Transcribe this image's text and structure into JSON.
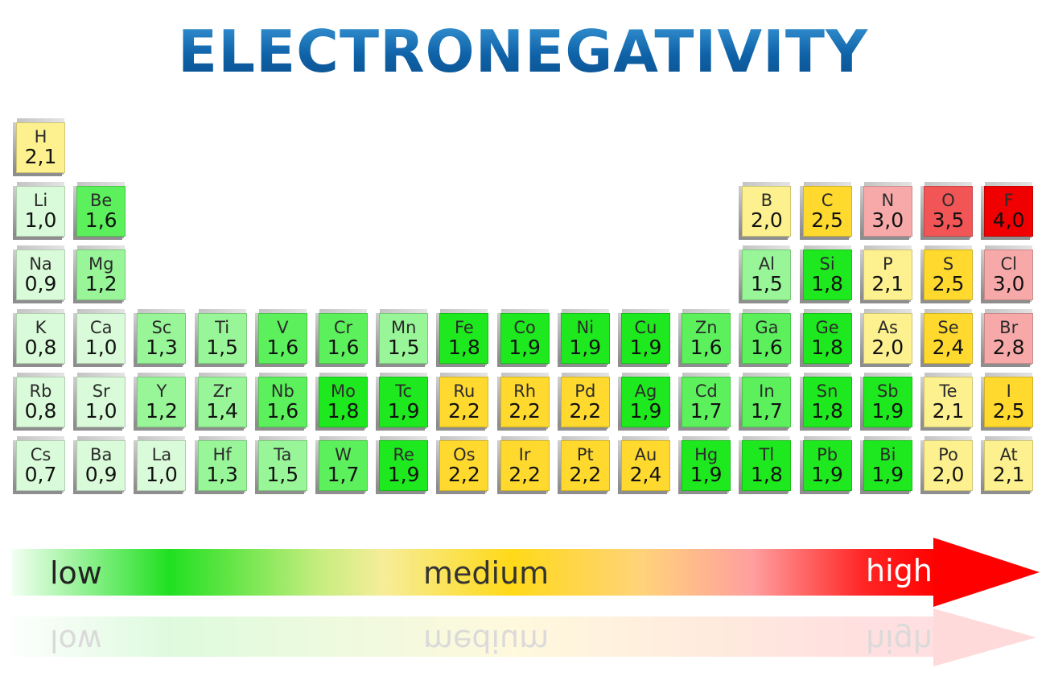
{
  "title": "ELECTRONEGATIVITY",
  "colors": {
    "title": "#1565b0",
    "scale_low": "#20e020",
    "scale_medium": "#ffd918",
    "scale_high": "#ff0000"
  },
  "scale": {
    "low": "low",
    "medium": "medium",
    "high": "high"
  },
  "legend_levels": {
    "very-low": "#d9fbd9",
    "low": "#98f598",
    "medium-low": "#5cf05c",
    "medium": "#1ee81e",
    "pale-yellow": "#fcf08f",
    "yellow": "#ffd92e",
    "pink": "#f7a9a9",
    "red-light": "#f25555",
    "red": "#f00000"
  },
  "elements": [
    {
      "symbol": "H",
      "value": "2,1",
      "row": 1,
      "col": 1,
      "level": "pale-yellow"
    },
    {
      "symbol": "Li",
      "value": "1,0",
      "row": 2,
      "col": 1,
      "level": "very-low"
    },
    {
      "symbol": "Be",
      "value": "1,6",
      "row": 2,
      "col": 2,
      "level": "medium-low"
    },
    {
      "symbol": "B",
      "value": "2,0",
      "row": 2,
      "col": 13,
      "level": "pale-yellow"
    },
    {
      "symbol": "C",
      "value": "2,5",
      "row": 2,
      "col": 14,
      "level": "yellow"
    },
    {
      "symbol": "N",
      "value": "3,0",
      "row": 2,
      "col": 15,
      "level": "pink"
    },
    {
      "symbol": "O",
      "value": "3,5",
      "row": 2,
      "col": 16,
      "level": "red-light"
    },
    {
      "symbol": "F",
      "value": "4,0",
      "row": 2,
      "col": 17,
      "level": "red"
    },
    {
      "symbol": "Na",
      "value": "0,9",
      "row": 3,
      "col": 1,
      "level": "very-low"
    },
    {
      "symbol": "Mg",
      "value": "1,2",
      "row": 3,
      "col": 2,
      "level": "low"
    },
    {
      "symbol": "Al",
      "value": "1,5",
      "row": 3,
      "col": 13,
      "level": "low"
    },
    {
      "symbol": "Si",
      "value": "1,8",
      "row": 3,
      "col": 14,
      "level": "medium"
    },
    {
      "symbol": "P",
      "value": "2,1",
      "row": 3,
      "col": 15,
      "level": "pale-yellow"
    },
    {
      "symbol": "S",
      "value": "2,5",
      "row": 3,
      "col": 16,
      "level": "yellow"
    },
    {
      "symbol": "Cl",
      "value": "3,0",
      "row": 3,
      "col": 17,
      "level": "pink"
    },
    {
      "symbol": "K",
      "value": "0,8",
      "row": 4,
      "col": 1,
      "level": "very-low"
    },
    {
      "symbol": "Ca",
      "value": "1,0",
      "row": 4,
      "col": 2,
      "level": "very-low"
    },
    {
      "symbol": "Sc",
      "value": "1,3",
      "row": 4,
      "col": 3,
      "level": "low"
    },
    {
      "symbol": "Ti",
      "value": "1,5",
      "row": 4,
      "col": 4,
      "level": "low"
    },
    {
      "symbol": "V",
      "value": "1,6",
      "row": 4,
      "col": 5,
      "level": "medium-low"
    },
    {
      "symbol": "Cr",
      "value": "1,6",
      "row": 4,
      "col": 6,
      "level": "medium-low"
    },
    {
      "symbol": "Mn",
      "value": "1,5",
      "row": 4,
      "col": 7,
      "level": "low"
    },
    {
      "symbol": "Fe",
      "value": "1,8",
      "row": 4,
      "col": 8,
      "level": "medium"
    },
    {
      "symbol": "Co",
      "value": "1,9",
      "row": 4,
      "col": 9,
      "level": "medium"
    },
    {
      "symbol": "Ni",
      "value": "1,9",
      "row": 4,
      "col": 10,
      "level": "medium"
    },
    {
      "symbol": "Cu",
      "value": "1,9",
      "row": 4,
      "col": 11,
      "level": "medium"
    },
    {
      "symbol": "Zn",
      "value": "1,6",
      "row": 4,
      "col": 12,
      "level": "medium-low"
    },
    {
      "symbol": "Ga",
      "value": "1,6",
      "row": 4,
      "col": 13,
      "level": "medium-low"
    },
    {
      "symbol": "Ge",
      "value": "1,8",
      "row": 4,
      "col": 14,
      "level": "medium"
    },
    {
      "symbol": "As",
      "value": "2,0",
      "row": 4,
      "col": 15,
      "level": "pale-yellow"
    },
    {
      "symbol": "Se",
      "value": "2,4",
      "row": 4,
      "col": 16,
      "level": "yellow"
    },
    {
      "symbol": "Br",
      "value": "2,8",
      "row": 4,
      "col": 17,
      "level": "pink"
    },
    {
      "symbol": "Rb",
      "value": "0,8",
      "row": 5,
      "col": 1,
      "level": "very-low"
    },
    {
      "symbol": "Sr",
      "value": "1,0",
      "row": 5,
      "col": 2,
      "level": "very-low"
    },
    {
      "symbol": "Y",
      "value": "1,2",
      "row": 5,
      "col": 3,
      "level": "low"
    },
    {
      "symbol": "Zr",
      "value": "1,4",
      "row": 5,
      "col": 4,
      "level": "low"
    },
    {
      "symbol": "Nb",
      "value": "1,6",
      "row": 5,
      "col": 5,
      "level": "medium-low"
    },
    {
      "symbol": "Mo",
      "value": "1,8",
      "row": 5,
      "col": 6,
      "level": "medium"
    },
    {
      "symbol": "Tc",
      "value": "1,9",
      "row": 5,
      "col": 7,
      "level": "medium"
    },
    {
      "symbol": "Ru",
      "value": "2,2",
      "row": 5,
      "col": 8,
      "level": "yellow"
    },
    {
      "symbol": "Rh",
      "value": "2,2",
      "row": 5,
      "col": 9,
      "level": "yellow"
    },
    {
      "symbol": "Pd",
      "value": "2,2",
      "row": 5,
      "col": 10,
      "level": "yellow"
    },
    {
      "symbol": "Ag",
      "value": "1,9",
      "row": 5,
      "col": 11,
      "level": "medium"
    },
    {
      "symbol": "Cd",
      "value": "1,7",
      "row": 5,
      "col": 12,
      "level": "medium-low"
    },
    {
      "symbol": "In",
      "value": "1,7",
      "row": 5,
      "col": 13,
      "level": "medium-low"
    },
    {
      "symbol": "Sn",
      "value": "1,8",
      "row": 5,
      "col": 14,
      "level": "medium"
    },
    {
      "symbol": "Sb",
      "value": "1,9",
      "row": 5,
      "col": 15,
      "level": "medium"
    },
    {
      "symbol": "Te",
      "value": "2,1",
      "row": 5,
      "col": 16,
      "level": "pale-yellow"
    },
    {
      "symbol": "I",
      "value": "2,5",
      "row": 5,
      "col": 17,
      "level": "yellow"
    },
    {
      "symbol": "Cs",
      "value": "0,7",
      "row": 6,
      "col": 1,
      "level": "very-low"
    },
    {
      "symbol": "Ba",
      "value": "0,9",
      "row": 6,
      "col": 2,
      "level": "very-low"
    },
    {
      "symbol": "La",
      "value": "1,0",
      "row": 6,
      "col": 3,
      "level": "very-low"
    },
    {
      "symbol": "Hf",
      "value": "1,3",
      "row": 6,
      "col": 4,
      "level": "low"
    },
    {
      "symbol": "Ta",
      "value": "1,5",
      "row": 6,
      "col": 5,
      "level": "low"
    },
    {
      "symbol": "W",
      "value": "1,7",
      "row": 6,
      "col": 6,
      "level": "medium-low"
    },
    {
      "symbol": "Re",
      "value": "1,9",
      "row": 6,
      "col": 7,
      "level": "medium"
    },
    {
      "symbol": "Os",
      "value": "2,2",
      "row": 6,
      "col": 8,
      "level": "yellow"
    },
    {
      "symbol": "Ir",
      "value": "2,2",
      "row": 6,
      "col": 9,
      "level": "yellow"
    },
    {
      "symbol": "Pt",
      "value": "2,2",
      "row": 6,
      "col": 10,
      "level": "yellow"
    },
    {
      "symbol": "Au",
      "value": "2,4",
      "row": 6,
      "col": 11,
      "level": "yellow"
    },
    {
      "symbol": "Hg",
      "value": "1,9",
      "row": 6,
      "col": 12,
      "level": "medium"
    },
    {
      "symbol": "Tl",
      "value": "1,8",
      "row": 6,
      "col": 13,
      "level": "medium"
    },
    {
      "symbol": "Pb",
      "value": "1,9",
      "row": 6,
      "col": 14,
      "level": "medium"
    },
    {
      "symbol": "Bi",
      "value": "1,9",
      "row": 6,
      "col": 15,
      "level": "medium"
    },
    {
      "symbol": "Po",
      "value": "2,0",
      "row": 6,
      "col": 16,
      "level": "pale-yellow"
    },
    {
      "symbol": "At",
      "value": "2,1",
      "row": 6,
      "col": 17,
      "level": "pale-yellow"
    }
  ]
}
